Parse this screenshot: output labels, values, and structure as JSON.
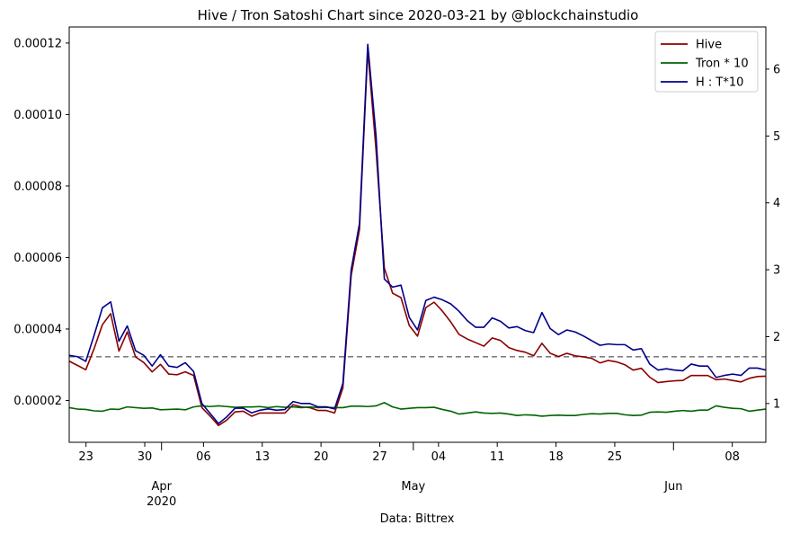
{
  "chart_data": {
    "type": "line",
    "title": "Hive / Tron Satoshi Chart since 2020-03-21 by @blockchainstudio",
    "xlabel": "Data: Bittrex",
    "x_start": "2020-03-21",
    "x_end": "2020-06-12",
    "x_major_ticks": [
      {
        "date": "2020-03-23",
        "label": "23"
      },
      {
        "date": "2020-03-30",
        "label": "30"
      },
      {
        "date": "2020-04-06",
        "label": "06"
      },
      {
        "date": "2020-04-13",
        "label": "13"
      },
      {
        "date": "2020-04-20",
        "label": "20"
      },
      {
        "date": "2020-04-27",
        "label": "27"
      },
      {
        "date": "2020-05-04",
        "label": "04"
      },
      {
        "date": "2020-05-11",
        "label": "11"
      },
      {
        "date": "2020-05-18",
        "label": "18"
      },
      {
        "date": "2020-05-25",
        "label": "25"
      },
      {
        "date": "2020-06-08",
        "label": "08"
      }
    ],
    "x_month_labels": [
      {
        "date": "2020-04-01",
        "label": "Apr",
        "sub": "2020"
      },
      {
        "date": "2020-05-01",
        "label": "May",
        "sub": ""
      },
      {
        "date": "2020-06-01",
        "label": "Jun",
        "sub": ""
      }
    ],
    "y_left": {
      "range": [
        8.3e-06,
        0.0001245
      ],
      "ticks": [
        "0.00002",
        "0.00004",
        "0.00006",
        "0.00008",
        "0.00010",
        "0.00012"
      ]
    },
    "y_right": {
      "range": [
        0.42,
        6.63
      ],
      "ticks": [
        "1",
        "2",
        "3",
        "4",
        "5",
        "6"
      ]
    },
    "reference_line": {
      "axis": "right",
      "value": 1.7,
      "color": "#808080",
      "style": "dashed"
    },
    "legend": {
      "placement": "top-right"
    },
    "series": [
      {
        "name": "Hive",
        "color": "#8b0000",
        "axis": "left",
        "values": [
          3.1e-05,
          2.98e-05,
          2.86e-05,
          3.45e-05,
          4.12e-05,
          4.43e-05,
          3.38e-05,
          3.92e-05,
          3.22e-05,
          3.06e-05,
          2.8e-05,
          3.01e-05,
          2.74e-05,
          2.72e-05,
          2.8e-05,
          2.7e-05,
          1.8e-05,
          1.56e-05,
          1.3e-05,
          1.45e-05,
          1.68e-05,
          1.7e-05,
          1.56e-05,
          1.65e-05,
          1.65e-05,
          1.65e-05,
          1.65e-05,
          1.88e-05,
          1.82e-05,
          1.8e-05,
          1.72e-05,
          1.72e-05,
          1.65e-05,
          2.35e-05,
          5.5e-05,
          6.78e-05,
          0.000118,
          9e-05,
          5.7e-05,
          5e-05,
          4.88e-05,
          4.1e-05,
          3.8e-05,
          4.6e-05,
          4.75e-05,
          4.5e-05,
          4.2e-05,
          3.85e-05,
          3.72e-05,
          3.62e-05,
          3.52e-05,
          3.75e-05,
          3.68e-05,
          3.48e-05,
          3.4e-05,
          3.35e-05,
          3.25e-05,
          3.6e-05,
          3.32e-05,
          3.23e-05,
          3.32e-05,
          3.25e-05,
          3.22e-05,
          3.18e-05,
          3.05e-05,
          3.12e-05,
          3.08e-05,
          3e-05,
          2.85e-05,
          2.9e-05,
          2.65e-05,
          2.5e-05,
          2.53e-05,
          2.55e-05,
          2.56e-05,
          2.7e-05,
          2.7e-05,
          2.7e-05,
          2.58e-05,
          2.6e-05,
          2.56e-05,
          2.52e-05,
          2.62e-05,
          2.67e-05,
          2.68e-05
        ]
      },
      {
        "name": "Tron * 10",
        "color": "#006400",
        "axis": "left",
        "values": [
          1.8e-05,
          1.76e-05,
          1.75e-05,
          1.71e-05,
          1.7e-05,
          1.76e-05,
          1.75e-05,
          1.82e-05,
          1.8e-05,
          1.78e-05,
          1.79e-05,
          1.74e-05,
          1.75e-05,
          1.76e-05,
          1.74e-05,
          1.82e-05,
          1.85e-05,
          1.83e-05,
          1.85e-05,
          1.83e-05,
          1.81e-05,
          1.82e-05,
          1.82e-05,
          1.83e-05,
          1.8e-05,
          1.83e-05,
          1.81e-05,
          1.82e-05,
          1.8e-05,
          1.82e-05,
          1.8e-05,
          1.81e-05,
          1.8e-05,
          1.8e-05,
          1.84e-05,
          1.84e-05,
          1.83e-05,
          1.85e-05,
          1.94e-05,
          1.82e-05,
          1.76e-05,
          1.78e-05,
          1.8e-05,
          1.8e-05,
          1.81e-05,
          1.75e-05,
          1.7e-05,
          1.62e-05,
          1.65e-05,
          1.68e-05,
          1.65e-05,
          1.64e-05,
          1.65e-05,
          1.62e-05,
          1.58e-05,
          1.6e-05,
          1.59e-05,
          1.56e-05,
          1.58e-05,
          1.59e-05,
          1.58e-05,
          1.58e-05,
          1.61e-05,
          1.63e-05,
          1.62e-05,
          1.64e-05,
          1.64e-05,
          1.6e-05,
          1.58e-05,
          1.59e-05,
          1.67e-05,
          1.68e-05,
          1.67e-05,
          1.7e-05,
          1.72e-05,
          1.7e-05,
          1.73e-05,
          1.73e-05,
          1.85e-05,
          1.81e-05,
          1.78e-05,
          1.77e-05,
          1.7e-05,
          1.73e-05,
          1.76e-05
        ]
      },
      {
        "name": "H : T*10",
        "color": "#00008b",
        "axis": "right",
        "values": [
          1.72,
          1.7,
          1.63,
          2.02,
          2.43,
          2.52,
          1.93,
          2.16,
          1.79,
          1.72,
          1.56,
          1.73,
          1.56,
          1.54,
          1.61,
          1.48,
          1.0,
          0.85,
          0.7,
          0.8,
          0.93,
          0.93,
          0.86,
          0.9,
          0.92,
          0.9,
          0.91,
          1.03,
          1.0,
          1.0,
          0.95,
          0.95,
          0.92,
          1.3,
          3.0,
          3.69,
          6.37,
          5.0,
          2.86,
          2.74,
          2.77,
          2.29,
          2.1,
          2.54,
          2.59,
          2.55,
          2.49,
          2.38,
          2.24,
          2.14,
          2.14,
          2.28,
          2.23,
          2.13,
          2.15,
          2.09,
          2.06,
          2.36,
          2.12,
          2.03,
          2.1,
          2.07,
          2.01,
          1.94,
          1.87,
          1.89,
          1.88,
          1.88,
          1.8,
          1.82,
          1.59,
          1.5,
          1.52,
          1.5,
          1.49,
          1.59,
          1.56,
          1.56,
          1.39,
          1.42,
          1.44,
          1.42,
          1.53,
          1.53,
          1.5
        ]
      }
    ]
  }
}
